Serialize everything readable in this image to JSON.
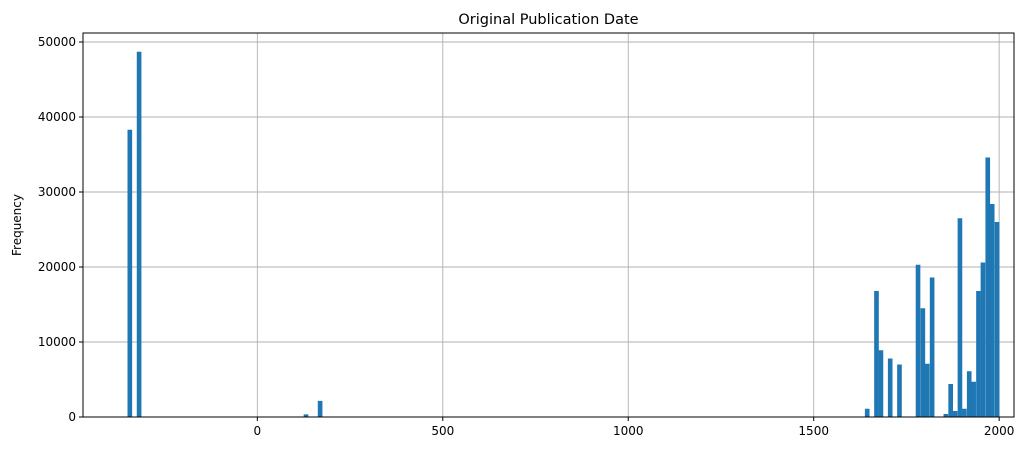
{
  "chart_data": {
    "type": "bar",
    "title": "Original Publication Date",
    "xlabel": "",
    "ylabel": "Frequency",
    "xlim": [
      -470,
      2040
    ],
    "ylim": [
      0,
      51200
    ],
    "xticks": [
      0,
      500,
      1000,
      1500,
      2000
    ],
    "yticks": [
      0,
      10000,
      20000,
      30000,
      40000,
      50000
    ],
    "grid": true,
    "legend": "none",
    "bin_width": 12.5,
    "bins": [
      {
        "x": -350,
        "value": 38300
      },
      {
        "x": -325,
        "value": 48700
      },
      {
        "x": 125,
        "value": 350
      },
      {
        "x": 163,
        "value": 2150
      },
      {
        "x": 1638,
        "value": 1100
      },
      {
        "x": 1663,
        "value": 16800
      },
      {
        "x": 1675,
        "value": 8900
      },
      {
        "x": 1700,
        "value": 7800
      },
      {
        "x": 1725,
        "value": 7000
      },
      {
        "x": 1775,
        "value": 20300
      },
      {
        "x": 1788,
        "value": 14500
      },
      {
        "x": 1800,
        "value": 7100
      },
      {
        "x": 1813,
        "value": 18600
      },
      {
        "x": 1850,
        "value": 400
      },
      {
        "x": 1863,
        "value": 4400
      },
      {
        "x": 1875,
        "value": 800
      },
      {
        "x": 1888,
        "value": 26500
      },
      {
        "x": 1900,
        "value": 1100
      },
      {
        "x": 1913,
        "value": 6100
      },
      {
        "x": 1925,
        "value": 4700
      },
      {
        "x": 1938,
        "value": 16800
      },
      {
        "x": 1950,
        "value": 20600
      },
      {
        "x": 1963,
        "value": 34600
      },
      {
        "x": 1975,
        "value": 28400
      },
      {
        "x": 1988,
        "value": 26000
      }
    ]
  }
}
